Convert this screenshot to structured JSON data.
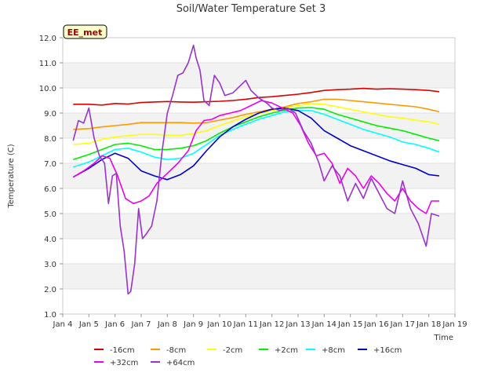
{
  "chart_data": {
    "type": "line",
    "title": "Soil/Water Temperature Set 3",
    "xlabel": "Time",
    "ylabel": "Temperature (C)",
    "badge": "EE_met",
    "xlim": [
      4,
      19
    ],
    "ylim": [
      1.0,
      12.0
    ],
    "x_ticks": [
      4,
      5,
      6,
      7,
      8,
      9,
      10,
      11,
      12,
      13,
      14,
      15,
      16,
      17,
      18,
      19
    ],
    "x_tick_labels": [
      "Jan 4",
      "Jan 5",
      "Jan 6",
      "Jan 7",
      "Jan 8",
      "Jan 9",
      "Jan 10",
      "Jan 11",
      "Jan 12",
      "Jan 13",
      "Jan 14",
      "Jan 15",
      "Jan 16",
      "Jan 17",
      "Jan 18",
      "Jan 19"
    ],
    "y_ticks": [
      1,
      2,
      3,
      4,
      5,
      6,
      7,
      8,
      9,
      10,
      11,
      12
    ],
    "y_tick_labels": [
      "1.0",
      "2.0",
      "3.0",
      "4.0",
      "5.0",
      "6.0",
      "7.0",
      "8.0",
      "9.0",
      "10.0",
      "11.0",
      "12.0"
    ],
    "grid": true,
    "legend_position": "bottom",
    "series": [
      {
        "name": "-16cm",
        "color": "#dd0000",
        "x": [
          4.4,
          5,
          5.5,
          6,
          6.5,
          7,
          7.5,
          8,
          8.5,
          9,
          9.5,
          10,
          10.5,
          11,
          11.5,
          12,
          12.5,
          13,
          13.5,
          14,
          14.5,
          15,
          15.5,
          16,
          16.5,
          17,
          17.5,
          18,
          18.4
        ],
        "y": [
          9.35,
          9.35,
          9.32,
          9.38,
          9.36,
          9.42,
          9.44,
          9.46,
          9.44,
          9.43,
          9.45,
          9.47,
          9.5,
          9.55,
          9.62,
          9.65,
          9.7,
          9.75,
          9.82,
          9.9,
          9.93,
          9.95,
          9.98,
          9.95,
          9.97,
          9.95,
          9.93,
          9.9,
          9.85
        ]
      },
      {
        "name": "-8cm",
        "color": "#ff9900",
        "x": [
          4.4,
          5,
          5.5,
          6,
          6.5,
          7,
          7.5,
          8,
          8.5,
          9,
          9.5,
          10,
          10.5,
          11,
          11.5,
          12,
          12.5,
          13,
          13.5,
          14,
          14.5,
          15,
          15.5,
          16,
          16.5,
          17,
          17.5,
          18,
          18.4
        ],
        "y": [
          8.35,
          8.38,
          8.45,
          8.5,
          8.55,
          8.62,
          8.62,
          8.62,
          8.62,
          8.6,
          8.62,
          8.72,
          8.82,
          8.95,
          9.05,
          9.15,
          9.25,
          9.38,
          9.45,
          9.55,
          9.55,
          9.5,
          9.45,
          9.4,
          9.35,
          9.3,
          9.25,
          9.15,
          9.05
        ]
      },
      {
        "name": "-2cm",
        "color": "#ffff00",
        "x": [
          4.4,
          5,
          5.5,
          6,
          6.5,
          7,
          7.5,
          8,
          8.5,
          9,
          9.5,
          10,
          10.5,
          11,
          11.5,
          12,
          12.5,
          13,
          13.5,
          14,
          14.5,
          15,
          15.5,
          16,
          16.5,
          17,
          17.5,
          18,
          18.4
        ],
        "y": [
          7.75,
          7.8,
          7.95,
          8.05,
          8.1,
          8.15,
          8.15,
          8.12,
          8.12,
          8.18,
          8.3,
          8.5,
          8.68,
          8.85,
          8.98,
          9.1,
          9.2,
          9.3,
          9.38,
          9.35,
          9.25,
          9.15,
          9.05,
          8.95,
          8.85,
          8.8,
          8.72,
          8.65,
          8.55
        ]
      },
      {
        "name": "+2cm",
        "color": "#00ee00",
        "x": [
          4.4,
          5,
          5.5,
          6,
          6.5,
          7,
          7.5,
          8,
          8.5,
          9,
          9.5,
          10,
          10.5,
          11,
          11.5,
          12,
          12.5,
          13,
          13.5,
          14,
          14.5,
          15,
          15.5,
          16,
          16.5,
          17,
          17.5,
          18,
          18.4
        ],
        "y": [
          7.15,
          7.35,
          7.55,
          7.75,
          7.8,
          7.7,
          7.55,
          7.55,
          7.6,
          7.7,
          7.9,
          8.2,
          8.45,
          8.65,
          8.85,
          9.0,
          9.12,
          9.2,
          9.22,
          9.15,
          8.95,
          8.8,
          8.65,
          8.5,
          8.4,
          8.3,
          8.15,
          8.0,
          7.9
        ]
      },
      {
        "name": "+8cm",
        "color": "#00ffff",
        "x": [
          4.4,
          5,
          5.5,
          6,
          6.5,
          7,
          7.5,
          8,
          8.5,
          9,
          9.5,
          10,
          10.5,
          11,
          11.5,
          12,
          12.5,
          13,
          13.5,
          14,
          14.5,
          15,
          15.5,
          16,
          16.5,
          17,
          17.5,
          18,
          18.4
        ],
        "y": [
          6.85,
          7.05,
          7.3,
          7.55,
          7.6,
          7.45,
          7.25,
          7.15,
          7.2,
          7.4,
          7.75,
          8.1,
          8.35,
          8.55,
          8.75,
          8.9,
          9.05,
          9.1,
          9.1,
          8.95,
          8.75,
          8.55,
          8.35,
          8.2,
          8.05,
          7.85,
          7.75,
          7.6,
          7.45
        ]
      },
      {
        "name": "+16cm",
        "color": "#0000cc",
        "x": [
          4.4,
          5,
          5.5,
          6,
          6.5,
          7,
          7.5,
          8,
          8.5,
          9,
          9.5,
          10,
          10.5,
          11,
          11.5,
          12,
          12.5,
          13,
          13.5,
          14,
          14.5,
          15,
          15.5,
          16,
          16.5,
          17,
          17.5,
          18,
          18.4
        ],
        "y": [
          6.45,
          6.8,
          7.15,
          7.4,
          7.2,
          6.7,
          6.5,
          6.35,
          6.55,
          6.9,
          7.5,
          8.05,
          8.45,
          8.75,
          9.0,
          9.15,
          9.2,
          9.1,
          8.8,
          8.3,
          8.0,
          7.7,
          7.5,
          7.3,
          7.1,
          6.95,
          6.8,
          6.55,
          6.5
        ]
      },
      {
        "name": "+32cm",
        "color": "#ee00ee",
        "x": [
          4.4,
          4.8,
          5.2,
          5.5,
          5.8,
          6.1,
          6.4,
          6.7,
          7.0,
          7.3,
          7.6,
          8.0,
          8.4,
          8.8,
          9.1,
          9.4,
          9.7,
          10.0,
          10.4,
          10.8,
          11.2,
          11.6,
          12.0,
          12.4,
          12.8,
          13.1,
          13.4,
          13.7,
          14.0,
          14.3,
          14.6,
          14.9,
          15.2,
          15.5,
          15.8,
          16.1,
          16.4,
          16.7,
          17.0,
          17.3,
          17.6,
          17.9,
          18.1,
          18.4
        ],
        "y": [
          6.45,
          6.7,
          7.0,
          7.3,
          7.2,
          6.5,
          5.6,
          5.4,
          5.5,
          5.7,
          6.2,
          6.6,
          7.0,
          7.5,
          8.3,
          8.7,
          8.75,
          8.9,
          9.0,
          9.1,
          9.3,
          9.5,
          9.4,
          9.2,
          9.0,
          8.5,
          7.8,
          7.3,
          7.4,
          7.0,
          6.2,
          6.8,
          6.5,
          6.0,
          6.5,
          6.2,
          5.8,
          5.5,
          6.0,
          5.5,
          5.2,
          5.0,
          5.5,
          5.5
        ]
      },
      {
        "name": "+64cm",
        "color": "#9933cc",
        "x": [
          4.4,
          4.6,
          4.8,
          5.0,
          5.2,
          5.4,
          5.6,
          5.75,
          5.9,
          6.05,
          6.2,
          6.35,
          6.5,
          6.6,
          6.75,
          6.9,
          7.05,
          7.2,
          7.4,
          7.6,
          7.8,
          8.0,
          8.2,
          8.4,
          8.6,
          8.8,
          9.0,
          9.1,
          9.25,
          9.4,
          9.6,
          9.8,
          10.0,
          10.2,
          10.5,
          10.8,
          11.0,
          11.2,
          11.5,
          11.8,
          12.0,
          12.3,
          12.6,
          12.9,
          13.2,
          13.5,
          13.8,
          14.0,
          14.3,
          14.6,
          14.9,
          15.2,
          15.5,
          15.8,
          16.1,
          16.4,
          16.7,
          17.0,
          17.3,
          17.6,
          17.9,
          18.1,
          18.4
        ],
        "y": [
          7.9,
          8.7,
          8.6,
          9.2,
          8.0,
          7.3,
          7.0,
          5.4,
          6.5,
          6.6,
          4.5,
          3.5,
          1.8,
          1.9,
          3.0,
          5.2,
          4.0,
          4.2,
          4.5,
          5.5,
          7.5,
          9.0,
          9.7,
          10.5,
          10.6,
          11.0,
          11.7,
          11.2,
          10.7,
          9.5,
          9.3,
          10.5,
          10.2,
          9.7,
          9.8,
          10.1,
          10.3,
          9.9,
          9.6,
          9.4,
          9.2,
          9.1,
          9.2,
          9.0,
          8.3,
          7.8,
          7.0,
          6.3,
          6.9,
          6.5,
          5.5,
          6.2,
          5.6,
          6.4,
          5.8,
          5.2,
          5.0,
          6.3,
          5.2,
          4.6,
          3.7,
          5.0,
          4.9
        ]
      }
    ]
  }
}
